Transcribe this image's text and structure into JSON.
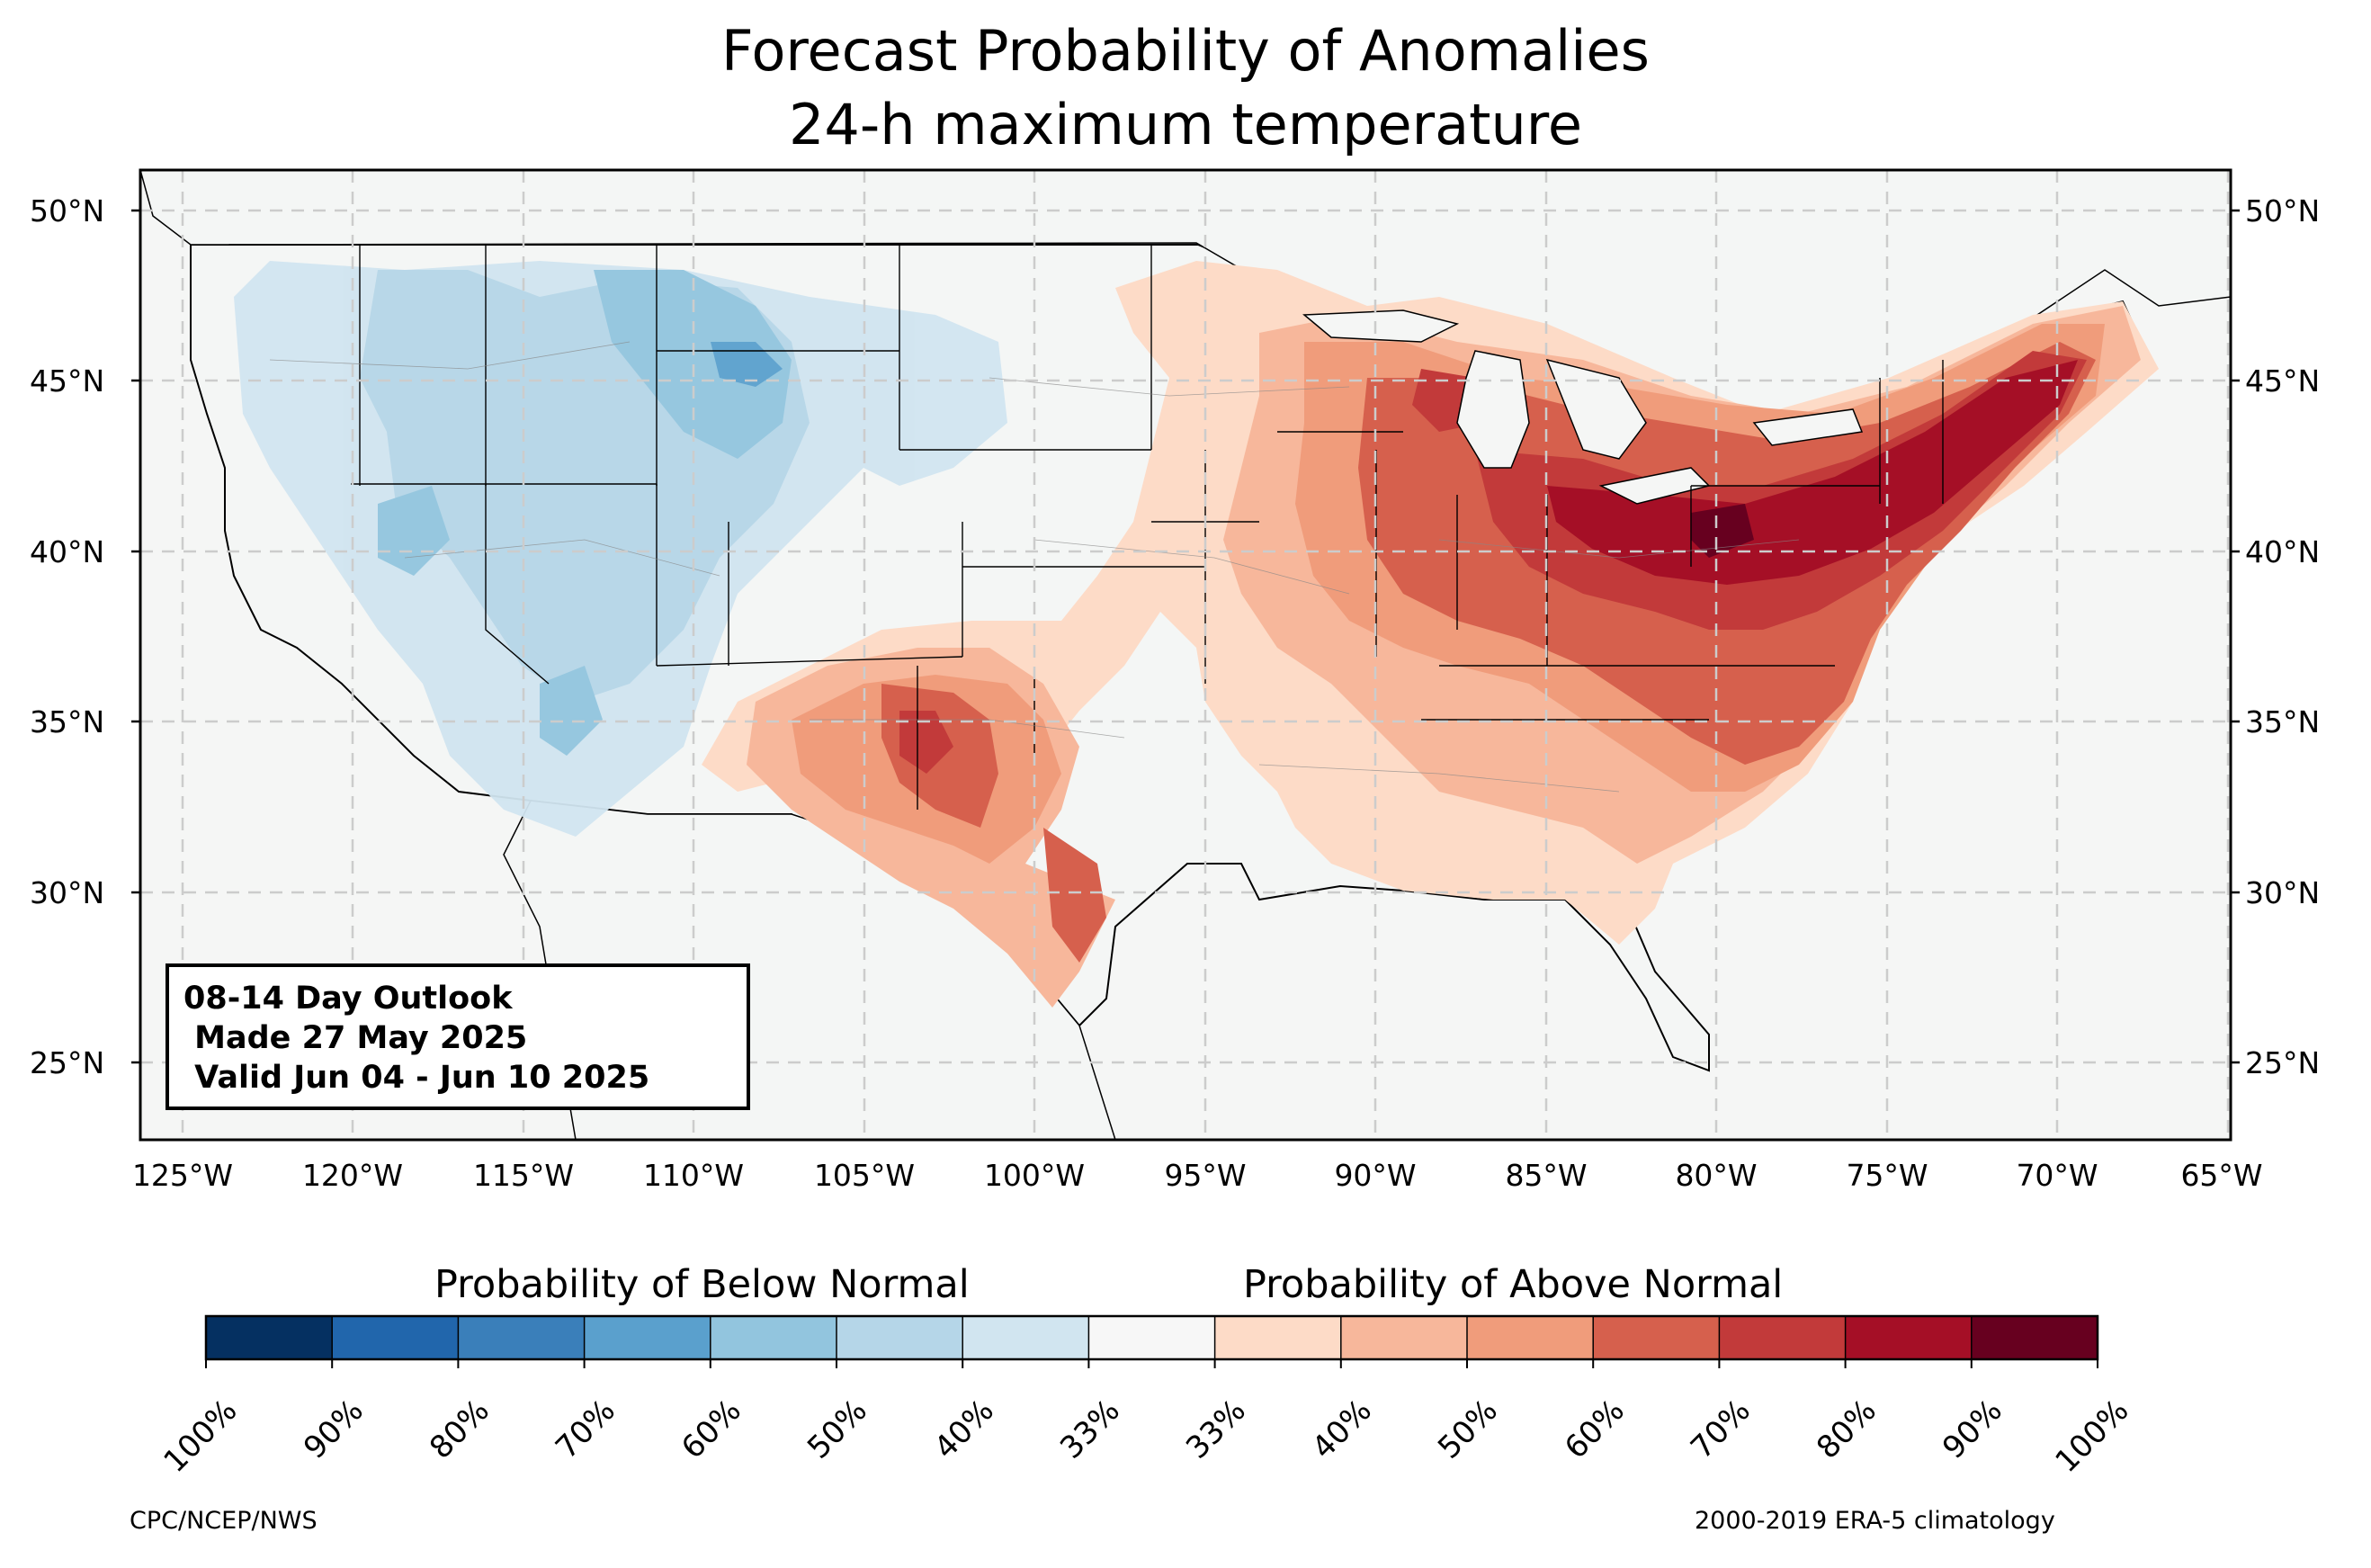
{
  "title_line1": "Forecast Probability of Anomalies",
  "title_line2": "24-h maximum temperature",
  "latitudes": [
    "50°N",
    "45°N",
    "40°N",
    "35°N",
    "30°N",
    "25°N"
  ],
  "longitudes": [
    "125°W",
    "120°W",
    "115°W",
    "110°W",
    "105°W",
    "100°W",
    "95°W",
    "90°W",
    "85°W",
    "80°W",
    "75°W",
    "70°W",
    "65°W"
  ],
  "info_box": {
    "line1": "08-14 Day Outlook",
    "line2": " Made 27 May 2025",
    "line3": " Valid Jun 04 - Jun 10 2025"
  },
  "colorbar": {
    "below_title": "Probability of Below Normal",
    "above_title": "Probability of Above Normal",
    "colors": [
      "#053061",
      "#2166ac",
      "#3a7fba",
      "#5aa0cd",
      "#92c5de",
      "#b5d6e8",
      "#d1e5f0",
      "#f7f7f7",
      "#fddbc7",
      "#f7b79b",
      "#f09c7b",
      "#d6604d",
      "#c23a3a",
      "#a50f26",
      "#67001f"
    ],
    "tick_labels": [
      "100%",
      "90%",
      "80%",
      "70%",
      "60%",
      "50%",
      "40%",
      "33%",
      "33%",
      "40%",
      "50%",
      "60%",
      "70%",
      "80%",
      "90%",
      "100%"
    ]
  },
  "footer_left": "CPC/NCEP/NWS",
  "footer_right": "2000-2019 ERA-5 climatology",
  "colors": {
    "ocean": "#f5f6f5",
    "grid": "#cccccc",
    "border": "#000000",
    "state_lines": "#888888"
  }
}
